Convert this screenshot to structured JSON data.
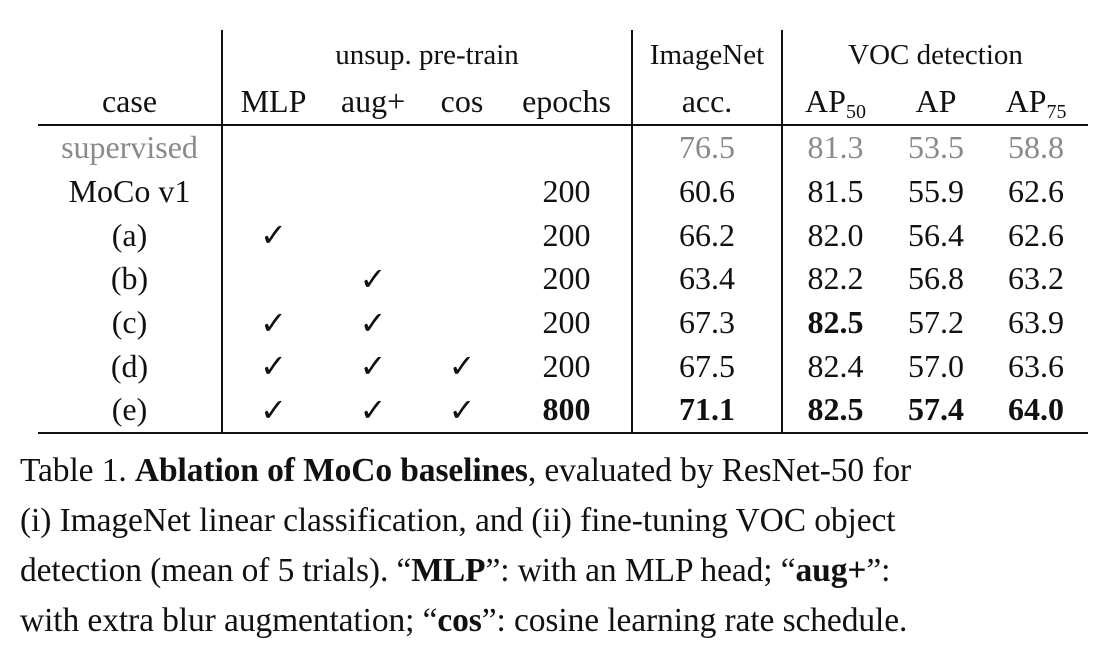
{
  "header": {
    "group_unsup": "unsup. pre-train",
    "group_imagenet": "ImageNet",
    "group_voc": "VOC detection",
    "col_case": "case",
    "col_mlp": "MLP",
    "col_aug": "aug+",
    "col_cos": "cos",
    "col_epochs": "epochs",
    "col_acc": "acc.",
    "col_ap50_base": "AP",
    "col_ap50_sub": "50",
    "col_ap": "AP",
    "col_ap75_base": "AP",
    "col_ap75_sub": "75"
  },
  "rows": [
    {
      "case": "supervised",
      "mlp": "",
      "aug": "",
      "cos": "",
      "epochs": "",
      "acc": "76.5",
      "ap50": "81.3",
      "ap": "53.5",
      "ap75": "58.8"
    },
    {
      "case": "MoCo v1",
      "mlp": "",
      "aug": "",
      "cos": "",
      "epochs": "200",
      "acc": "60.6",
      "ap50": "81.5",
      "ap": "55.9",
      "ap75": "62.6"
    },
    {
      "case": "(a)",
      "mlp": "✓",
      "aug": "",
      "cos": "",
      "epochs": "200",
      "acc": "66.2",
      "ap50": "82.0",
      "ap": "56.4",
      "ap75": "62.6"
    },
    {
      "case": "(b)",
      "mlp": "",
      "aug": "✓",
      "cos": "",
      "epochs": "200",
      "acc": "63.4",
      "ap50": "82.2",
      "ap": "56.8",
      "ap75": "63.2"
    },
    {
      "case": "(c)",
      "mlp": "✓",
      "aug": "✓",
      "cos": "",
      "epochs": "200",
      "acc": "67.3",
      "ap50": "82.5",
      "ap": "57.2",
      "ap75": "63.9"
    },
    {
      "case": "(d)",
      "mlp": "✓",
      "aug": "✓",
      "cos": "✓",
      "epochs": "200",
      "acc": "67.5",
      "ap50": "82.4",
      "ap": "57.0",
      "ap75": "63.6"
    },
    {
      "case": "(e)",
      "mlp": "✓",
      "aug": "✓",
      "cos": "✓",
      "epochs": "800",
      "acc": "71.1",
      "ap50": "82.5",
      "ap": "57.4",
      "ap75": "64.0"
    }
  ],
  "caption": {
    "l1_a": "Table 1. ",
    "l1_b": "Ablation of MoCo baselines",
    "l1_c": ", evaluated by ResNet-50 for",
    "l2": "(i) ImageNet linear classification, and (ii) fine-tuning VOC object",
    "l3_a": "detection (mean of 5 trials). “",
    "l3_b": "MLP",
    "l3_c": "”: with an MLP head; “",
    "l3_d": "aug+",
    "l3_e": "”:",
    "l4_a": "with extra blur augmentation; “",
    "l4_b": "cos",
    "l4_c": "”: cosine learning rate schedule."
  }
}
